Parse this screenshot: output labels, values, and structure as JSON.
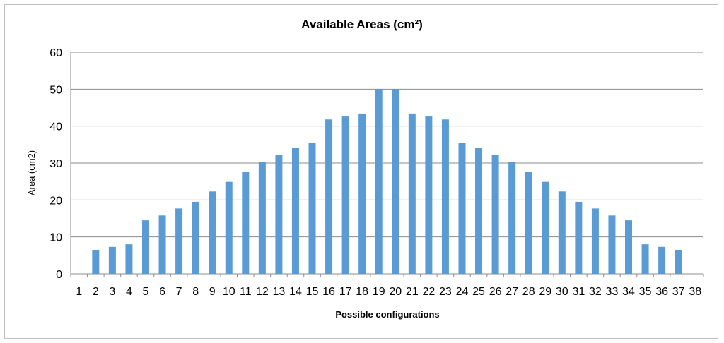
{
  "chart_data": {
    "type": "bar",
    "title": "Available Areas (cm²)",
    "xlabel": "Possible configurations",
    "ylabel": "Area (cm2)",
    "ylim": [
      0,
      60
    ],
    "yticks": [
      "0",
      "10",
      "20",
      "30",
      "40",
      "50",
      "60"
    ],
    "categories": [
      "1",
      "2",
      "3",
      "4",
      "5",
      "6",
      "7",
      "8",
      "9",
      "10",
      "11",
      "12",
      "13",
      "14",
      "15",
      "16",
      "17",
      "18",
      "19",
      "20",
      "21",
      "22",
      "23",
      "24",
      "25",
      "26",
      "27",
      "28",
      "29",
      "30",
      "31",
      "32",
      "33",
      "34",
      "35",
      "36",
      "37",
      "38"
    ],
    "values": [
      0,
      6.5,
      7.3,
      8.0,
      14.5,
      15.8,
      17.7,
      19.5,
      22.3,
      24.9,
      27.6,
      30.3,
      32.2,
      34.1,
      35.4,
      41.8,
      42.6,
      43.4,
      50,
      50,
      43.4,
      42.6,
      41.8,
      35.4,
      34.1,
      32.2,
      30.3,
      27.6,
      24.9,
      22.3,
      19.5,
      17.7,
      15.8,
      14.5,
      8.0,
      7.3,
      6.5,
      0
    ],
    "bar_color": "#5b9bd5",
    "grid_color": "#8c8c8c",
    "grid": true,
    "legend": false
  }
}
